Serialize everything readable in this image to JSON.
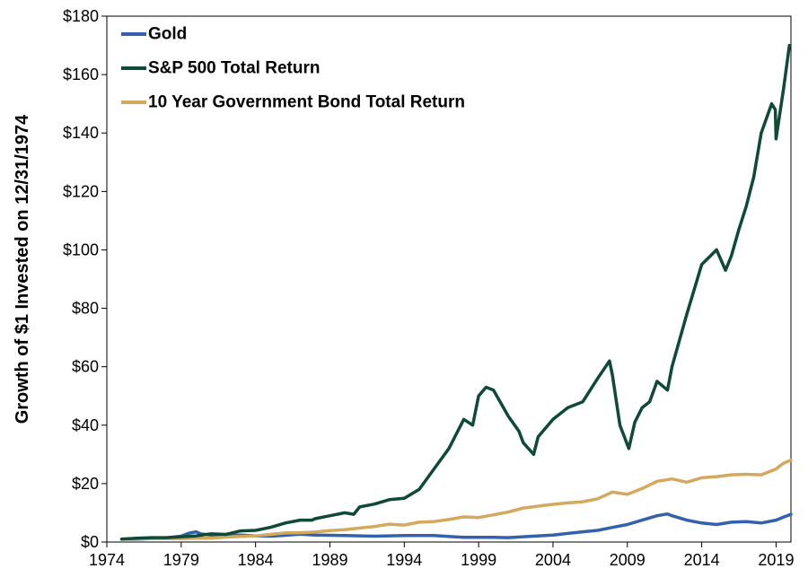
{
  "chart_data": {
    "type": "line",
    "title": "",
    "xlabel": "",
    "ylabel": "Growth of $1 Invested on 12/31/1974",
    "xlim": [
      1974.0,
      2020.0
    ],
    "ylim": [
      0,
      180
    ],
    "x_ticks": [
      1974,
      1979,
      1984,
      1989,
      1994,
      1999,
      2004,
      2009,
      2014,
      2019
    ],
    "x_tick_labels": [
      "1974",
      "1979",
      "1984",
      "1989",
      "1994",
      "1999",
      "2004",
      "2009",
      "2014",
      "2019"
    ],
    "y_ticks": [
      0,
      20,
      40,
      60,
      80,
      100,
      120,
      140,
      160,
      180
    ],
    "y_tick_labels": [
      "$0",
      "$20",
      "$40",
      "$60",
      "$80",
      "$100",
      "$120",
      "$140",
      "$160",
      "$180"
    ],
    "grid": false,
    "legend_position": "top-left",
    "series": [
      {
        "name": "Gold",
        "color": "#3461ad",
        "x": [
          1975.0,
          1976.0,
          1977.0,
          1978.0,
          1979.0,
          1979.5,
          1980.0,
          1980.3,
          1981.0,
          1982.0,
          1983.0,
          1984.0,
          1985.0,
          1986.0,
          1987.0,
          1988.0,
          1989.0,
          1990.0,
          1992.0,
          1994.0,
          1996.0,
          1998.0,
          2000.0,
          2001.0,
          2002.0,
          2004.0,
          2006.0,
          2007.0,
          2008.0,
          2009.0,
          2010.0,
          2011.0,
          2011.7,
          2012.0,
          2013.0,
          2014.0,
          2015.0,
          2016.0,
          2017.0,
          2018.0,
          2019.0,
          2019.5,
          2020.0
        ],
        "values": [
          1.0,
          1.0,
          1.2,
          1.4,
          2.0,
          3.0,
          3.5,
          2.8,
          2.4,
          2.2,
          2.4,
          2.1,
          2.0,
          2.3,
          2.7,
          2.4,
          2.3,
          2.2,
          2.0,
          2.2,
          2.2,
          1.6,
          1.6,
          1.5,
          1.8,
          2.4,
          3.5,
          4.0,
          5.0,
          6.0,
          7.5,
          9.0,
          9.6,
          9.0,
          7.5,
          6.5,
          6.0,
          6.8,
          7.0,
          6.5,
          7.5,
          8.5,
          9.5
        ]
      },
      {
        "name": "S&P 500 Total Return",
        "color": "#0f4a35",
        "x": [
          1975.0,
          1976.0,
          1977.0,
          1978.0,
          1979.0,
          1980.0,
          1981.0,
          1982.0,
          1983.0,
          1984.0,
          1985.0,
          1986.0,
          1987.0,
          1987.8,
          1988.0,
          1989.0,
          1990.0,
          1990.6,
          1991.0,
          1992.0,
          1993.0,
          1994.0,
          1995.0,
          1996.0,
          1997.0,
          1998.0,
          1998.6,
          1999.0,
          1999.5,
          2000.0,
          2001.0,
          2001.7,
          2002.0,
          2002.7,
          2003.0,
          2004.0,
          2005.0,
          2006.0,
          2007.0,
          2007.8,
          2008.0,
          2008.5,
          2009.1,
          2009.5,
          2010.0,
          2010.5,
          2011.0,
          2011.7,
          2012.0,
          2013.0,
          2014.0,
          2015.0,
          2015.6,
          2016.0,
          2016.5,
          2017.0,
          2017.5,
          2018.0,
          2018.7,
          2018.95,
          2019.0,
          2019.5,
          2019.9
        ],
        "values": [
          1.0,
          1.3,
          1.5,
          1.5,
          1.8,
          2.1,
          2.8,
          2.6,
          3.8,
          4.0,
          5.0,
          6.5,
          7.5,
          7.5,
          8.0,
          9.0,
          10.0,
          9.5,
          12.0,
          13.0,
          14.5,
          15.0,
          18.0,
          25.0,
          32.0,
          42.0,
          40.0,
          50.0,
          53.0,
          52.0,
          43.0,
          38.0,
          34.0,
          30.0,
          36.0,
          42.0,
          46.0,
          48.0,
          56.0,
          62.0,
          57.0,
          40.0,
          32.0,
          41.0,
          46.0,
          48.0,
          55.0,
          52.0,
          60.0,
          78.0,
          95.0,
          100.0,
          93.0,
          98.0,
          107.0,
          115.0,
          125.0,
          140.0,
          150.0,
          148.0,
          138.0,
          155.0,
          170.0
        ]
      },
      {
        "name": "10 Year Government Bond Total Return",
        "color": "#d4a85d",
        "x": [
          1975.0,
          1976.0,
          1977.0,
          1978.0,
          1979.0,
          1980.0,
          1981.0,
          1982.0,
          1983.0,
          1984.0,
          1985.0,
          1986.0,
          1987.0,
          1988.0,
          1989.0,
          1990.0,
          1991.0,
          1992.0,
          1993.0,
          1994.0,
          1995.0,
          1996.0,
          1997.0,
          1998.0,
          1999.0,
          2000.0,
          2001.0,
          2002.0,
          2003.0,
          2004.0,
          2005.0,
          2006.0,
          2007.0,
          2008.0,
          2009.0,
          2010.0,
          2011.0,
          2012.0,
          2013.0,
          2014.0,
          2015.0,
          2016.0,
          2017.0,
          2018.0,
          2019.0,
          2019.5,
          2020.0
        ],
        "values": [
          1.0,
          1.1,
          1.2,
          1.2,
          1.2,
          1.3,
          1.3,
          1.7,
          1.9,
          2.1,
          2.6,
          3.1,
          3.2,
          3.4,
          3.9,
          4.2,
          4.8,
          5.3,
          6.1,
          5.8,
          6.8,
          7.0,
          7.7,
          8.6,
          8.4,
          9.3,
          10.3,
          11.6,
          12.3,
          12.9,
          13.4,
          13.8,
          14.8,
          17.1,
          16.3,
          18.3,
          20.8,
          21.6,
          20.5,
          22.0,
          22.4,
          23.0,
          23.2,
          23.0,
          25.0,
          27.0,
          28.0
        ]
      }
    ]
  }
}
